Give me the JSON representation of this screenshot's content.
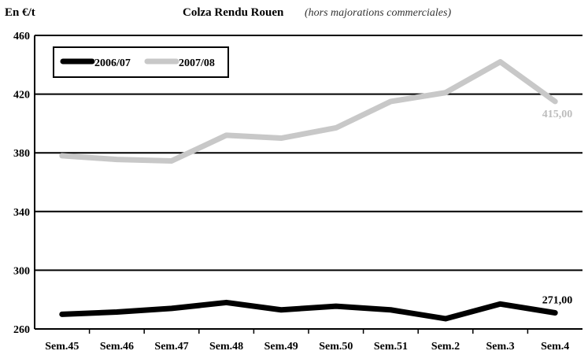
{
  "chart_data": {
    "type": "line",
    "title": "Colza Rendu Rouen",
    "subtitle": "(hors majorations commerciales)",
    "ylabel": "En €/t",
    "xlabel": "",
    "categories": [
      "Sem.45",
      "Sem.46",
      "Sem.47",
      "Sem.48",
      "Sem.49",
      "Sem.50",
      "Sem.51",
      "Sem.2",
      "Sem.3",
      "Sem.4"
    ],
    "ylim": [
      260,
      460
    ],
    "yticks": [
      260,
      300,
      340,
      380,
      420,
      460
    ],
    "grid": true,
    "legend_position": "top-left",
    "series": [
      {
        "name": "2006/07",
        "color": "#000000",
        "values": [
          270,
          271.5,
          274,
          278,
          273,
          275.5,
          273,
          267,
          277,
          271
        ],
        "end_label": "271,00"
      },
      {
        "name": "2007/08",
        "color": "#c8c8c8",
        "values": [
          378,
          375.5,
          374.5,
          392,
          390,
          397,
          415,
          421,
          442,
          415
        ],
        "end_label": "415,00"
      }
    ]
  }
}
